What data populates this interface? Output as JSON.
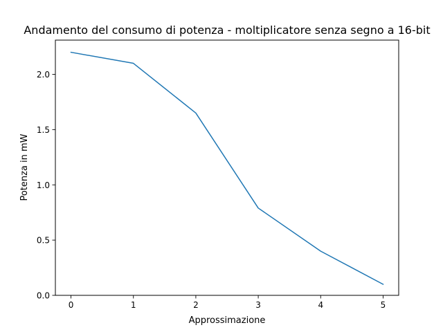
{
  "chart_data": {
    "type": "line",
    "title": "Andamento del consumo di potenza - moltiplicatore senza segno a 16-bit",
    "xlabel": "Approssimazione",
    "ylabel": "Potenza in mW",
    "x": [
      0,
      1,
      2,
      3,
      4,
      5
    ],
    "series": [
      {
        "values": [
          2.2,
          2.1,
          1.65,
          0.79,
          0.4,
          0.1
        ],
        "color": "#1f77b4"
      }
    ],
    "xlim": [
      -0.25,
      5.25
    ],
    "ylim": [
      0,
      2.31
    ],
    "xticks": [
      0,
      1,
      2,
      3,
      4,
      5
    ],
    "xtick_labels": [
      "0",
      "1",
      "2",
      "3",
      "4",
      "5"
    ],
    "yticks": [
      0,
      0.5,
      1.0,
      1.5,
      2.0
    ],
    "ytick_labels": [
      "0.0",
      "0.5",
      "1.0",
      "1.5",
      "2.0"
    ],
    "grid": false,
    "legend": "none"
  }
}
